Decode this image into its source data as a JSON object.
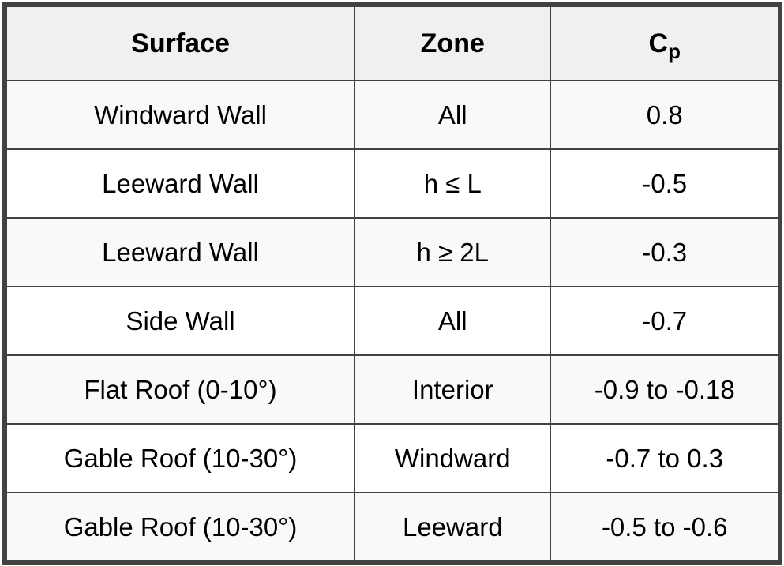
{
  "chart_data": {
    "type": "table",
    "columns": [
      "Surface",
      "Zone",
      "Cp"
    ],
    "rows": [
      [
        "Windward Wall",
        "All",
        "0.8"
      ],
      [
        "Leeward Wall",
        "h ≤ L",
        "-0.5"
      ],
      [
        "Leeward Wall",
        "h ≥ 2L",
        "-0.3"
      ],
      [
        "Side Wall",
        "All",
        "-0.7"
      ],
      [
        "Flat Roof (0-10°)",
        "Interior",
        "-0.9 to -0.18"
      ],
      [
        "Gable Roof (10-30°)",
        "Windward",
        "-0.7 to 0.3"
      ],
      [
        "Gable Roof (10-30°)",
        "Leeward",
        "-0.5 to -0.6"
      ]
    ]
  },
  "header": {
    "surface": "Surface",
    "zone": "Zone",
    "cp_base": "C",
    "cp_sub": "p"
  },
  "colors": {
    "border": "#424242",
    "header_bg": "#f0f0f0",
    "row_alt_bg": "#f9f9f9",
    "row_bg": "#ffffff",
    "text": "#000000"
  }
}
